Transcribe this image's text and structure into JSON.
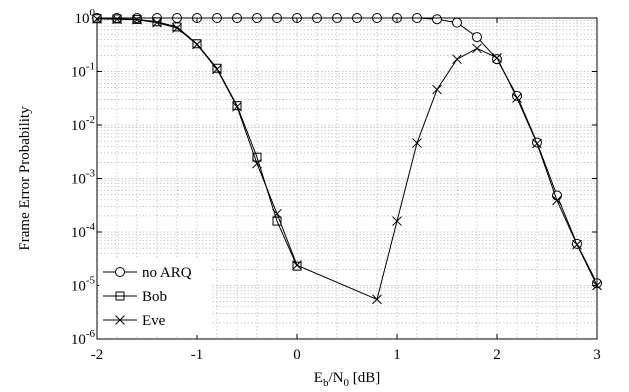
{
  "chart_data": {
    "type": "line",
    "xlabel": "E_b/N_0 [dB]",
    "ylabel": "Frame Error Probability",
    "xlim": [
      -2,
      3
    ],
    "ylim": [
      1e-06,
      1
    ],
    "yscale": "log",
    "grid": true,
    "legend_position": "bottom-left",
    "x_ticks": [
      -2,
      -1,
      0,
      1,
      2,
      3
    ],
    "y_tick_exponents": [
      -6,
      -5,
      -4,
      -3,
      -2,
      -1,
      0
    ],
    "xlabel_parts": {
      "e": "E",
      "b": "b",
      "slash": "/N",
      "zero": "0",
      "unit": " [dB]"
    },
    "series": [
      {
        "name": "no ARQ",
        "marker": "circle",
        "points": [
          [
            -2,
            1
          ],
          [
            -1.8,
            1
          ],
          [
            -1.6,
            1
          ],
          [
            -1.4,
            1
          ],
          [
            -1.2,
            1
          ],
          [
            -1,
            1
          ],
          [
            -0.8,
            1
          ],
          [
            -0.6,
            1
          ],
          [
            -0.4,
            1
          ],
          [
            -0.2,
            1
          ],
          [
            0,
            1
          ],
          [
            0.2,
            1
          ],
          [
            0.4,
            1
          ],
          [
            0.6,
            1
          ],
          [
            0.8,
            1
          ],
          [
            1,
            1
          ],
          [
            1.2,
            1
          ],
          [
            1.4,
            0.95
          ],
          [
            1.6,
            0.82
          ],
          [
            1.8,
            0.44
          ],
          [
            2,
            0.17
          ],
          [
            2.2,
            0.035
          ],
          [
            2.4,
            0.0047
          ],
          [
            2.6,
            0.00048
          ],
          [
            2.8,
            6e-05
          ],
          [
            3,
            1.1e-05
          ]
        ]
      },
      {
        "name": "Bob",
        "marker": "square",
        "points": [
          [
            -2,
            0.97
          ],
          [
            -1.8,
            0.96
          ],
          [
            -1.6,
            0.94
          ],
          [
            -1.4,
            0.85
          ],
          [
            -1.2,
            0.68
          ],
          [
            -1,
            0.33
          ],
          [
            -0.8,
            0.115
          ],
          [
            -0.6,
            0.023
          ],
          [
            -0.4,
            0.0025
          ],
          [
            -0.2,
            0.00016
          ],
          [
            0,
            2.3e-05
          ]
        ]
      },
      {
        "name": "Eve",
        "marker": "cross",
        "points": [
          [
            -2,
            0.96
          ],
          [
            -1.8,
            0.95
          ],
          [
            -1.6,
            0.93
          ],
          [
            -1.4,
            0.82
          ],
          [
            -1.2,
            0.65
          ],
          [
            -1,
            0.32
          ],
          [
            -0.8,
            0.11
          ],
          [
            -0.6,
            0.022
          ],
          [
            -0.4,
            0.0019
          ],
          [
            -0.2,
            0.00022
          ],
          [
            0,
            2.4e-05
          ],
          [
            0.8,
            5.5e-06
          ],
          [
            1,
            0.00016
          ],
          [
            1.2,
            0.0046
          ],
          [
            1.4,
            0.046
          ],
          [
            1.6,
            0.17
          ],
          [
            1.8,
            0.27
          ],
          [
            2,
            0.18
          ],
          [
            2.2,
            0.032
          ],
          [
            2.4,
            0.0045
          ],
          [
            2.6,
            0.00039
          ],
          [
            2.8,
            5.8e-05
          ],
          [
            3,
            1e-05
          ]
        ]
      }
    ]
  }
}
